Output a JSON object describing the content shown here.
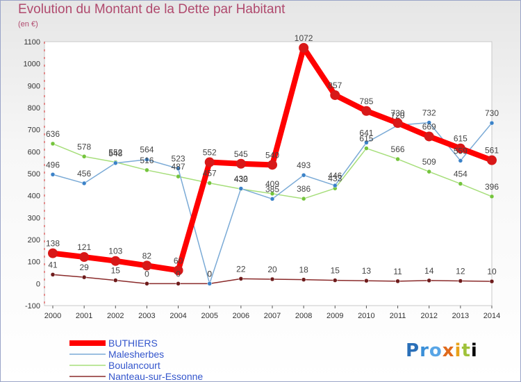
{
  "header": {
    "title": "Evolution du Montant de la Dette par Habitant",
    "unit": "(en €)"
  },
  "logo": {
    "letters": [
      "P",
      "r",
      "o",
      "x",
      "i",
      "t",
      "i"
    ],
    "text": "Proxiti"
  },
  "chart_data": {
    "type": "line",
    "title": "Evolution du Montant de la Dette par Habitant",
    "subtitle": "(en €)",
    "xlabel": "",
    "ylabel": "",
    "categories": [
      "2000",
      "2001",
      "2002",
      "2003",
      "2004",
      "2005",
      "2006",
      "2007",
      "2008",
      "2009",
      "2010",
      "2011",
      "2012",
      "2013",
      "2014"
    ],
    "ylim": [
      -100,
      1100
    ],
    "yticks": [
      "-100",
      "0",
      "100",
      "200",
      "300",
      "400",
      "500",
      "600",
      "700",
      "800",
      "900",
      "1000",
      "1100"
    ],
    "grid": false,
    "legend": "bottom-left",
    "series": [
      {
        "name": "BUTHIERS",
        "color": "#ff0000",
        "marker": "#d81818",
        "values": [
          138,
          121,
          103,
          82,
          60,
          552,
          545,
          540,
          1072,
          857,
          785,
          730,
          669,
          615,
          561
        ],
        "labels": [
          "138",
          "121",
          "103",
          "82",
          "60",
          "552",
          "545",
          "540",
          "1072",
          "857",
          "785",
          "730",
          "669",
          "615",
          "561"
        ]
      },
      {
        "name": "Malesherbes",
        "color": "#7aaad6",
        "marker": "#3b82c8",
        "values": [
          496,
          456,
          548,
          564,
          523,
          0,
          432,
          385,
          493,
          446,
          641,
          720,
          732,
          559,
          730
        ],
        "labels": [
          "496",
          "456",
          "548",
          "564",
          "523",
          "0",
          "432",
          "385",
          "493",
          "446",
          "641",
          "720",
          "732",
          "559",
          "730"
        ]
      },
      {
        "name": "Boulancourt",
        "color": "#a6de7a",
        "marker": "#74c43c",
        "values": [
          636,
          578,
          552,
          516,
          487,
          457,
          430,
          409,
          386,
          433,
          615,
          566,
          509,
          454,
          396
        ],
        "labels": [
          "636",
          "578",
          "552",
          "516",
          "487",
          "457",
          "430",
          "409",
          "386",
          "433",
          "615",
          "566",
          "509",
          "454",
          "396"
        ]
      },
      {
        "name": "Nanteau-sur-Essonne",
        "color": "#8a2a2a",
        "marker": "#6e1c1c",
        "values": [
          41,
          29,
          15,
          0,
          0,
          0,
          22,
          20,
          18,
          15,
          13,
          11,
          14,
          12,
          10
        ],
        "labels": [
          "41",
          "29",
          "15",
          "0",
          "0",
          "0",
          "22",
          "20",
          "18",
          "15",
          "13",
          "11",
          "14",
          "12",
          "10"
        ]
      }
    ]
  }
}
